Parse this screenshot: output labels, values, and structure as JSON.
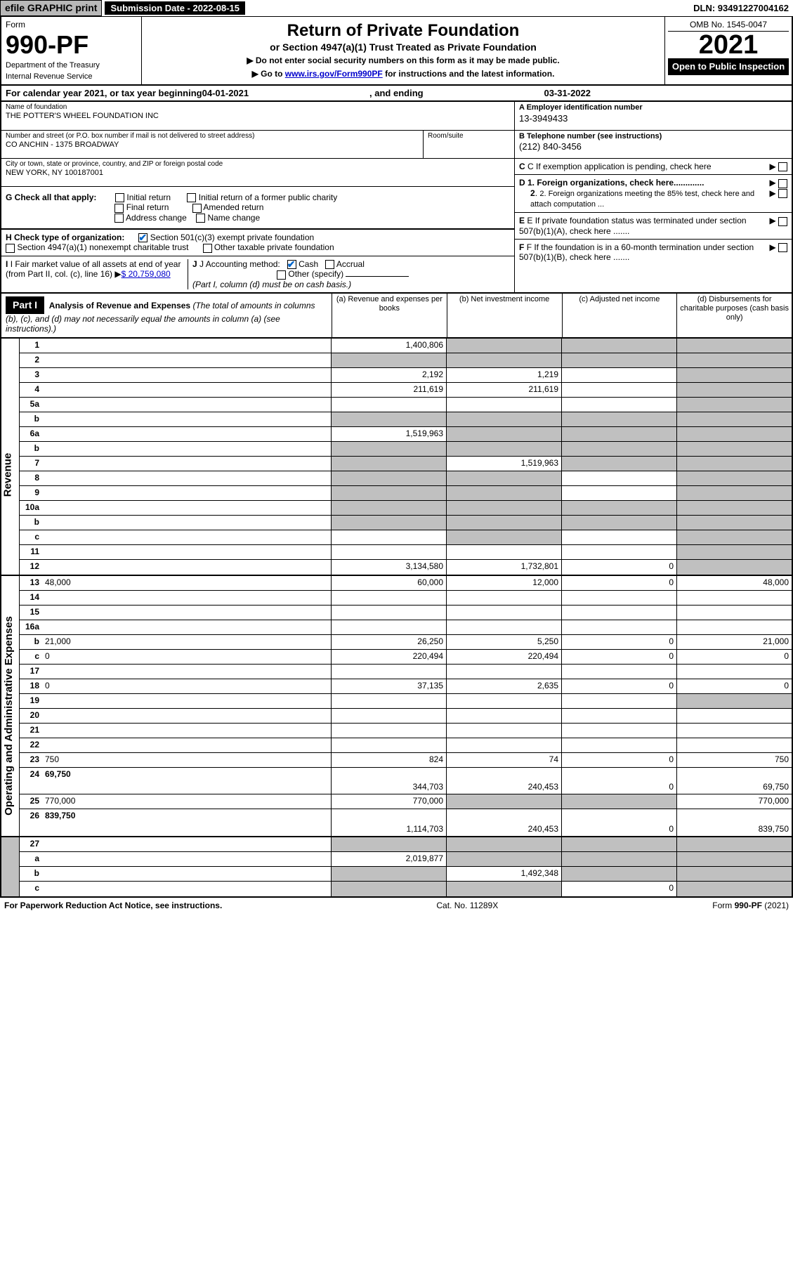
{
  "topbar": {
    "efile": "efile GRAPHIC print",
    "submission": "Submission Date - 2022-08-15",
    "dln": "DLN: 93491227004162"
  },
  "header": {
    "form_word": "Form",
    "form_num": "990-PF",
    "dept1": "Department of the Treasury",
    "dept2": "Internal Revenue Service",
    "title": "Return of Private Foundation",
    "subtitle": "or Section 4947(a)(1) Trust Treated as Private Foundation",
    "instr1": "▶ Do not enter social security numbers on this form as it may be made public.",
    "instr2_pre": "▶ Go to ",
    "instr2_link": "www.irs.gov/Form990PF",
    "instr2_post": " for instructions and the latest information.",
    "omb": "OMB No. 1545-0047",
    "year": "2021",
    "open": "Open to Public Inspection"
  },
  "cal": {
    "pre": "For calendar year 2021, or tax year beginning ",
    "begin": "04-01-2021",
    "mid": ", and ending ",
    "end": "03-31-2022"
  },
  "info": {
    "name_label": "Name of foundation",
    "name": "THE POTTER'S WHEEL FOUNDATION INC",
    "addr_label": "Number and street (or P.O. box number if mail is not delivered to street address)",
    "addr": "CO ANCHIN - 1375 BROADWAY",
    "room_label": "Room/suite",
    "city_label": "City or town, state or province, country, and ZIP or foreign postal code",
    "city": "NEW YORK, NY  100187001",
    "a_label": "A Employer identification number",
    "a_val": "13-3949433",
    "b_label": "B Telephone number (see instructions)",
    "b_val": "(212) 840-3456",
    "c_label": "C If exemption application is pending, check here",
    "d1": "D 1. Foreign organizations, check here.............",
    "d2": "2. Foreign organizations meeting the 85% test, check here and attach computation ...",
    "e_label": "E If private foundation status was terminated under section 507(b)(1)(A), check here .......",
    "f_label": "F If the foundation is in a 60-month termination under section 507(b)(1)(B), check here .......",
    "g_label": "G Check all that apply:",
    "g_opts": [
      "Initial return",
      "Initial return of a former public charity",
      "Final return",
      "Amended return",
      "Address change",
      "Name change"
    ],
    "h_label": "H Check type of organization:",
    "h_opt1": "Section 501(c)(3) exempt private foundation",
    "h_opt2": "Section 4947(a)(1) nonexempt charitable trust",
    "h_opt3": "Other taxable private foundation",
    "i_label": "I Fair market value of all assets at end of year (from Part II, col. (c), line 16)",
    "i_val": "$  20,759,080",
    "j_label": "J Accounting method:",
    "j_cash": "Cash",
    "j_accrual": "Accrual",
    "j_other": "Other (specify)",
    "j_note": "(Part I, column (d) must be on cash basis.)"
  },
  "part1": {
    "label": "Part I",
    "heading": "Analysis of Revenue and Expenses",
    "heading_note": " (The total of amounts in columns (b), (c), and (d) may not necessarily equal the amounts in column (a) (see instructions).)",
    "col_a": "(a) Revenue and expenses per books",
    "col_b": "(b) Net investment income",
    "col_c": "(c) Adjusted net income",
    "col_d": "(d) Disbursements for charitable purposes (cash basis only)"
  },
  "vtabs": {
    "rev": "Revenue",
    "exp": "Operating and Administrative Expenses"
  },
  "rows": [
    {
      "n": "1",
      "d": "",
      "a": "1,400,806",
      "b": "",
      "c": "",
      "grey": [
        "b",
        "c",
        "d"
      ]
    },
    {
      "n": "2",
      "d": "",
      "a": "",
      "b": "",
      "c": "",
      "grey": [
        "a",
        "b",
        "c",
        "d"
      ],
      "notbold": true
    },
    {
      "n": "3",
      "d": "",
      "a": "2,192",
      "b": "1,219",
      "c": "",
      "grey": [
        "d"
      ]
    },
    {
      "n": "4",
      "d": "",
      "a": "211,619",
      "b": "211,619",
      "c": "",
      "grey": [
        "d"
      ]
    },
    {
      "n": "5a",
      "d": "",
      "a": "",
      "b": "",
      "c": "",
      "grey": [
        "d"
      ]
    },
    {
      "n": "b",
      "d": "",
      "a": "",
      "b": "",
      "c": "",
      "grey": [
        "a",
        "b",
        "c",
        "d"
      ]
    },
    {
      "n": "6a",
      "d": "",
      "a": "1,519,963",
      "b": "",
      "c": "",
      "grey": [
        "b",
        "c",
        "d"
      ]
    },
    {
      "n": "b",
      "d": "",
      "a": "",
      "b": "",
      "c": "",
      "grey": [
        "a",
        "b",
        "c",
        "d"
      ]
    },
    {
      "n": "7",
      "d": "",
      "a": "",
      "b": "1,519,963",
      "c": "",
      "grey": [
        "a",
        "c",
        "d"
      ]
    },
    {
      "n": "8",
      "d": "",
      "a": "",
      "b": "",
      "c": "",
      "grey": [
        "a",
        "b",
        "d"
      ]
    },
    {
      "n": "9",
      "d": "",
      "a": "",
      "b": "",
      "c": "",
      "grey": [
        "a",
        "b",
        "d"
      ]
    },
    {
      "n": "10a",
      "d": "",
      "a": "",
      "b": "",
      "c": "",
      "grey": [
        "a",
        "b",
        "c",
        "d"
      ]
    },
    {
      "n": "b",
      "d": "",
      "a": "",
      "b": "",
      "c": "",
      "grey": [
        "a",
        "b",
        "c",
        "d"
      ]
    },
    {
      "n": "c",
      "d": "",
      "a": "",
      "b": "",
      "c": "",
      "grey": [
        "b",
        "d"
      ]
    },
    {
      "n": "11",
      "d": "",
      "a": "",
      "b": "",
      "c": "",
      "grey": [
        "d"
      ]
    },
    {
      "n": "12",
      "d": "",
      "a": "3,134,580",
      "b": "1,732,801",
      "c": "0",
      "grey": [
        "d"
      ],
      "bold": true
    }
  ],
  "exp_rows": [
    {
      "n": "13",
      "d": "48,000",
      "a": "60,000",
      "b": "12,000",
      "c": "0"
    },
    {
      "n": "14",
      "d": "",
      "a": "",
      "b": "",
      "c": ""
    },
    {
      "n": "15",
      "d": "",
      "a": "",
      "b": "",
      "c": ""
    },
    {
      "n": "16a",
      "d": "",
      "a": "",
      "b": "",
      "c": ""
    },
    {
      "n": "b",
      "d": "21,000",
      "a": "26,250",
      "b": "5,250",
      "c": "0"
    },
    {
      "n": "c",
      "d": "0",
      "a": "220,494",
      "b": "220,494",
      "c": "0"
    },
    {
      "n": "17",
      "d": "",
      "a": "",
      "b": "",
      "c": ""
    },
    {
      "n": "18",
      "d": "0",
      "a": "37,135",
      "b": "2,635",
      "c": "0"
    },
    {
      "n": "19",
      "d": "",
      "a": "",
      "b": "",
      "c": "",
      "grey": [
        "d"
      ]
    },
    {
      "n": "20",
      "d": "",
      "a": "",
      "b": "",
      "c": ""
    },
    {
      "n": "21",
      "d": "",
      "a": "",
      "b": "",
      "c": ""
    },
    {
      "n": "22",
      "d": "",
      "a": "",
      "b": "",
      "c": ""
    },
    {
      "n": "23",
      "d": "750",
      "a": "824",
      "b": "74",
      "c": "0"
    },
    {
      "n": "24",
      "d": "69,750",
      "a": "344,703",
      "b": "240,453",
      "c": "0",
      "bold": true,
      "tall": true
    },
    {
      "n": "25",
      "d": "770,000",
      "a": "770,000",
      "b": "",
      "c": "",
      "grey": [
        "b",
        "c"
      ]
    },
    {
      "n": "26",
      "d": "839,750",
      "a": "1,114,703",
      "b": "240,453",
      "c": "0",
      "bold": true,
      "tall": true
    }
  ],
  "bottom_rows": [
    {
      "n": "27",
      "d": "",
      "a": "",
      "b": "",
      "c": "",
      "grey": [
        "a",
        "b",
        "c",
        "d"
      ]
    },
    {
      "n": "a",
      "d": "",
      "a": "2,019,877",
      "b": "",
      "c": "",
      "grey": [
        "b",
        "c",
        "d"
      ],
      "bold": true
    },
    {
      "n": "b",
      "d": "",
      "a": "",
      "b": "1,492,348",
      "c": "",
      "grey": [
        "a",
        "c",
        "d"
      ],
      "bold": true
    },
    {
      "n": "c",
      "d": "",
      "a": "",
      "b": "",
      "c": "0",
      "grey": [
        "a",
        "b",
        "d"
      ],
      "bold": true
    }
  ],
  "footer": {
    "left": "For Paperwork Reduction Act Notice, see instructions.",
    "center": "Cat. No. 11289X",
    "right": "Form 990-PF (2021)"
  },
  "colors": {
    "black": "#000000",
    "grey_bg": "#c0c0c0",
    "btn_bg": "#b8b8b8",
    "link": "#0000cc",
    "check": "#0066cc"
  }
}
